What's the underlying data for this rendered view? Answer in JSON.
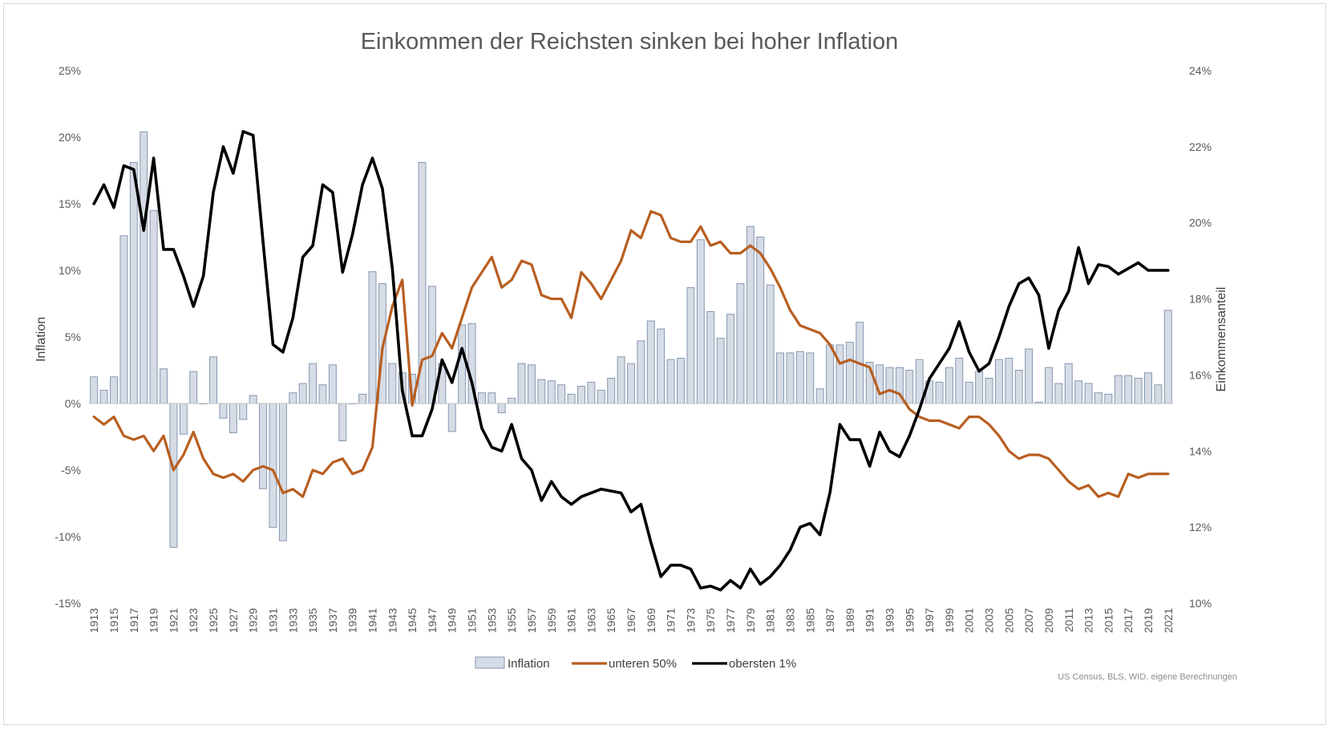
{
  "chart_data": {
    "type": "bar+line",
    "title": "Einkommen der Reichsten sinken bei hoher Inflation",
    "source_note": "US Census, BLS, WID, eigene Berechnungen",
    "left_axis": {
      "label": "Inflation",
      "range": [
        -0.15,
        0.25
      ],
      "ticks": [
        {
          "value": 0.25,
          "label": "25%"
        },
        {
          "value": 0.2,
          "label": "20%"
        },
        {
          "value": 0.15,
          "label": "15%"
        },
        {
          "value": 0.1,
          "label": "10%"
        },
        {
          "value": 0.05,
          "label": "5%"
        },
        {
          "value": 0.0,
          "label": "0%"
        },
        {
          "value": -0.05,
          "label": "-5%"
        },
        {
          "value": -0.1,
          "label": "-10%"
        },
        {
          "value": -0.15,
          "label": "-15%"
        }
      ]
    },
    "right_axis": {
      "label": "Einkommensanteil",
      "range": [
        0.1,
        0.24
      ],
      "ticks": [
        {
          "value": 0.24,
          "label": "24%"
        },
        {
          "value": 0.22,
          "label": "22%"
        },
        {
          "value": 0.2,
          "label": "20%"
        },
        {
          "value": 0.18,
          "label": "18%"
        },
        {
          "value": 0.16,
          "label": "16%"
        },
        {
          "value": 0.14,
          "label": "14%"
        },
        {
          "value": 0.12,
          "label": "12%"
        },
        {
          "value": 0.1,
          "label": "10%"
        }
      ]
    },
    "x_axis": {
      "start": 1913,
      "end": 2021,
      "tick_labels": [
        "1913",
        "1915",
        "1917",
        "1919",
        "1921",
        "1923",
        "1925",
        "1927",
        "1929",
        "1931",
        "1933",
        "1935",
        "1937",
        "1939",
        "1941",
        "1943",
        "1945",
        "1947",
        "1949",
        "1951",
        "1953",
        "1955",
        "1957",
        "1959",
        "1961",
        "1963",
        "1965",
        "1967",
        "1969",
        "1971",
        "1973",
        "1975",
        "1977",
        "1979",
        "1981",
        "1983",
        "1985",
        "1987",
        "1989",
        "1991",
        "1993",
        "1995",
        "1997",
        "1999",
        "2001",
        "2003",
        "2005",
        "2007",
        "2009",
        "2011",
        "2013",
        "2015",
        "2017",
        "2019",
        "2021"
      ]
    },
    "legend": {
      "position": "bottom",
      "items": [
        {
          "label": "Inflation",
          "kind": "bar",
          "color": "#d6dce5",
          "stroke": "#8497b0"
        },
        {
          "label": "unteren 50%",
          "kind": "line",
          "color": "#b85e20"
        },
        {
          "label": "obersten 1%",
          "kind": "line",
          "color": "#000000"
        }
      ]
    },
    "series": [
      {
        "name": "Inflation",
        "axis": "left",
        "type": "bar",
        "values": [
          2.0,
          1.0,
          2.0,
          12.6,
          18.1,
          20.4,
          14.5,
          2.6,
          -10.8,
          -2.3,
          2.4,
          0.0,
          3.5,
          -1.1,
          -2.2,
          -1.2,
          0.6,
          -6.4,
          -9.3,
          -10.3,
          0.8,
          1.5,
          3.0,
          1.4,
          2.9,
          -2.8,
          0.0,
          0.7,
          9.9,
          9.0,
          3.0,
          2.3,
          2.2,
          18.1,
          8.8,
          3.0,
          -2.1,
          5.9,
          6.0,
          0.8,
          0.8,
          -0.7,
          0.4,
          3.0,
          2.9,
          1.8,
          1.7,
          1.4,
          0.7,
          1.3,
          1.6,
          1.0,
          1.9,
          3.5,
          3.0,
          4.7,
          6.2,
          5.6,
          3.3,
          3.4,
          8.7,
          12.3,
          6.9,
          4.9,
          6.7,
          9.0,
          13.3,
          12.5,
          8.9,
          3.8,
          3.8,
          3.9,
          3.8,
          1.1,
          4.4,
          4.4,
          4.6,
          6.1,
          3.1,
          2.9,
          2.7,
          2.7,
          2.5,
          3.3,
          1.7,
          1.6,
          2.7,
          3.4,
          1.6,
          2.4,
          1.9,
          3.3,
          3.4,
          2.5,
          4.1,
          0.1,
          2.7,
          1.5,
          3.0,
          1.7,
          1.5,
          0.8,
          0.7,
          2.1,
          2.1,
          1.9,
          2.3,
          1.4,
          7.0
        ]
      },
      {
        "name": "unteren 50%",
        "axis": "right",
        "type": "line",
        "values": [
          14.9,
          14.7,
          14.9,
          14.4,
          14.3,
          14.4,
          14.0,
          14.4,
          13.5,
          13.9,
          14.5,
          13.8,
          13.4,
          13.3,
          13.4,
          13.2,
          13.5,
          13.6,
          13.5,
          12.9,
          13.0,
          12.8,
          13.5,
          13.4,
          13.7,
          13.8,
          13.4,
          13.5,
          14.1,
          16.7,
          17.8,
          18.5,
          15.2,
          16.4,
          16.5,
          17.1,
          16.7,
          17.5,
          18.3,
          18.7,
          19.1,
          18.3,
          18.5,
          19.0,
          18.9,
          18.1,
          18.0,
          18.0,
          17.5,
          18.7,
          18.4,
          18.0,
          18.5,
          19.0,
          19.8,
          19.6,
          20.3,
          20.2,
          19.6,
          19.5,
          19.5,
          19.9,
          19.4,
          19.5,
          19.2,
          19.2,
          19.4,
          19.2,
          18.8,
          18.3,
          17.7,
          17.3,
          17.2,
          17.1,
          16.8,
          16.3,
          16.4,
          16.3,
          16.2,
          15.5,
          15.6,
          15.5,
          15.1,
          14.9,
          14.8,
          14.8,
          14.7,
          14.6,
          14.9,
          14.9,
          14.7,
          14.4,
          14.0,
          13.8,
          13.9,
          13.9,
          13.8,
          13.5,
          13.2,
          13.0,
          13.1,
          12.8,
          12.9,
          12.8,
          13.4,
          13.3,
          13.4,
          13.4,
          13.4
        ]
      },
      {
        "name": "obersten 1%",
        "axis": "right",
        "type": "line",
        "values": [
          20.5,
          21.0,
          20.4,
          21.5,
          21.4,
          19.8,
          21.7,
          19.3,
          19.3,
          18.6,
          17.8,
          18.6,
          20.8,
          22.0,
          21.3,
          22.4,
          22.3,
          19.5,
          16.8,
          16.6,
          17.5,
          19.1,
          19.4,
          21.0,
          20.8,
          18.7,
          19.7,
          21.0,
          21.7,
          20.9,
          18.8,
          15.6,
          14.4,
          14.4,
          15.1,
          16.4,
          15.8,
          16.7,
          15.8,
          14.6,
          14.1,
          14.0,
          14.7,
          13.8,
          13.5,
          12.7,
          13.2,
          12.8,
          12.6,
          12.8,
          12.9,
          13.0,
          12.95,
          12.9,
          12.4,
          12.6,
          11.6,
          10.7,
          11.0,
          11.0,
          10.9,
          10.4,
          10.45,
          10.35,
          10.6,
          10.4,
          10.9,
          10.5,
          10.7,
          11.0,
          11.4,
          12.0,
          12.1,
          11.8,
          12.9,
          14.7,
          14.3,
          14.3,
          13.6,
          14.5,
          14.0,
          13.85,
          14.4,
          15.1,
          15.9,
          16.3,
          16.7,
          17.4,
          16.6,
          16.1,
          16.3,
          17.0,
          17.8,
          18.4,
          18.55,
          18.1,
          16.7,
          17.7,
          18.2,
          19.35,
          18.4,
          18.9,
          18.85,
          18.65,
          18.8,
          18.95,
          18.75,
          18.75,
          18.75
        ]
      }
    ]
  }
}
